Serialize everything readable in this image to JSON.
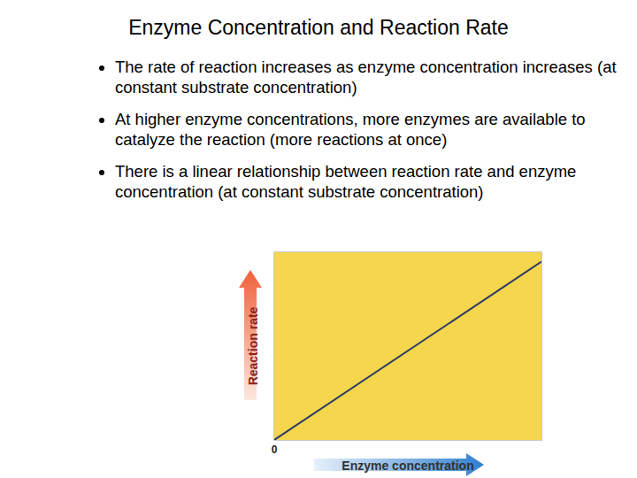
{
  "slide": {
    "title": "Enzyme Concentration and Reaction Rate",
    "bullets": [
      "The rate of reaction increases as enzyme concentration increases (at constant substrate concentration)",
      "At higher enzyme concentrations, more enzymes are available to catalyze the reaction (more reactions at once)",
      "There is a linear relationship between reaction rate and enzyme concentration (at constant substrate concentration)"
    ]
  },
  "chart_data": {
    "type": "line",
    "x": [
      0,
      10
    ],
    "values": [
      0,
      9.5
    ],
    "xlim": [
      0,
      10
    ],
    "ylim": [
      0,
      10
    ],
    "xticks": [
      0
    ],
    "yticks": [],
    "xlabel": "Enzyme concentration",
    "ylabel": "Reaction rate",
    "tick_labels": "x",
    "grid": false,
    "color": "#2b3a67"
  }
}
